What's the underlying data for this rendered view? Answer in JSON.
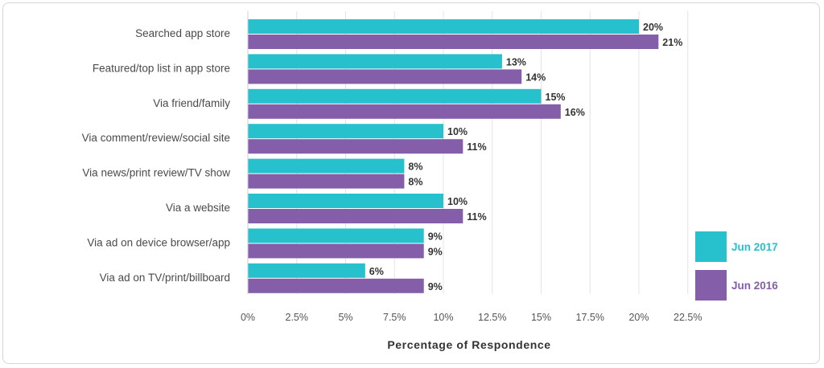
{
  "chart_data": {
    "type": "bar",
    "orientation": "horizontal",
    "categories": [
      "Searched app store",
      "Featured/top list in app store",
      "Via friend/family",
      "Via comment/review/social site",
      "Via news/print review/TV show",
      "Via a website",
      "Via ad on device browser/app",
      "Via ad on TV/print/billboard"
    ],
    "series": [
      {
        "name": "Jun 2017",
        "color": "#26c1cc",
        "values": [
          20,
          13,
          15,
          10,
          8,
          10,
          9,
          6
        ]
      },
      {
        "name": "Jun 2016",
        "color": "#845ea8",
        "values": [
          21,
          14,
          16,
          11,
          8,
          11,
          9,
          9
        ]
      }
    ],
    "xlabel": "Percentage of Respondence",
    "ylabel": "",
    "xlim": [
      0,
      22.5
    ],
    "xticks": [
      0,
      2.5,
      5,
      7.5,
      10,
      12.5,
      15,
      17.5,
      20,
      22.5
    ],
    "xtick_labels": [
      "0%",
      "2.5%",
      "5%",
      "7.5%",
      "10%",
      "12.5%",
      "15%",
      "17.5%",
      "20%",
      "22.5%"
    ],
    "value_suffix": "%",
    "grid": true,
    "legend_position": "bottom-right"
  }
}
